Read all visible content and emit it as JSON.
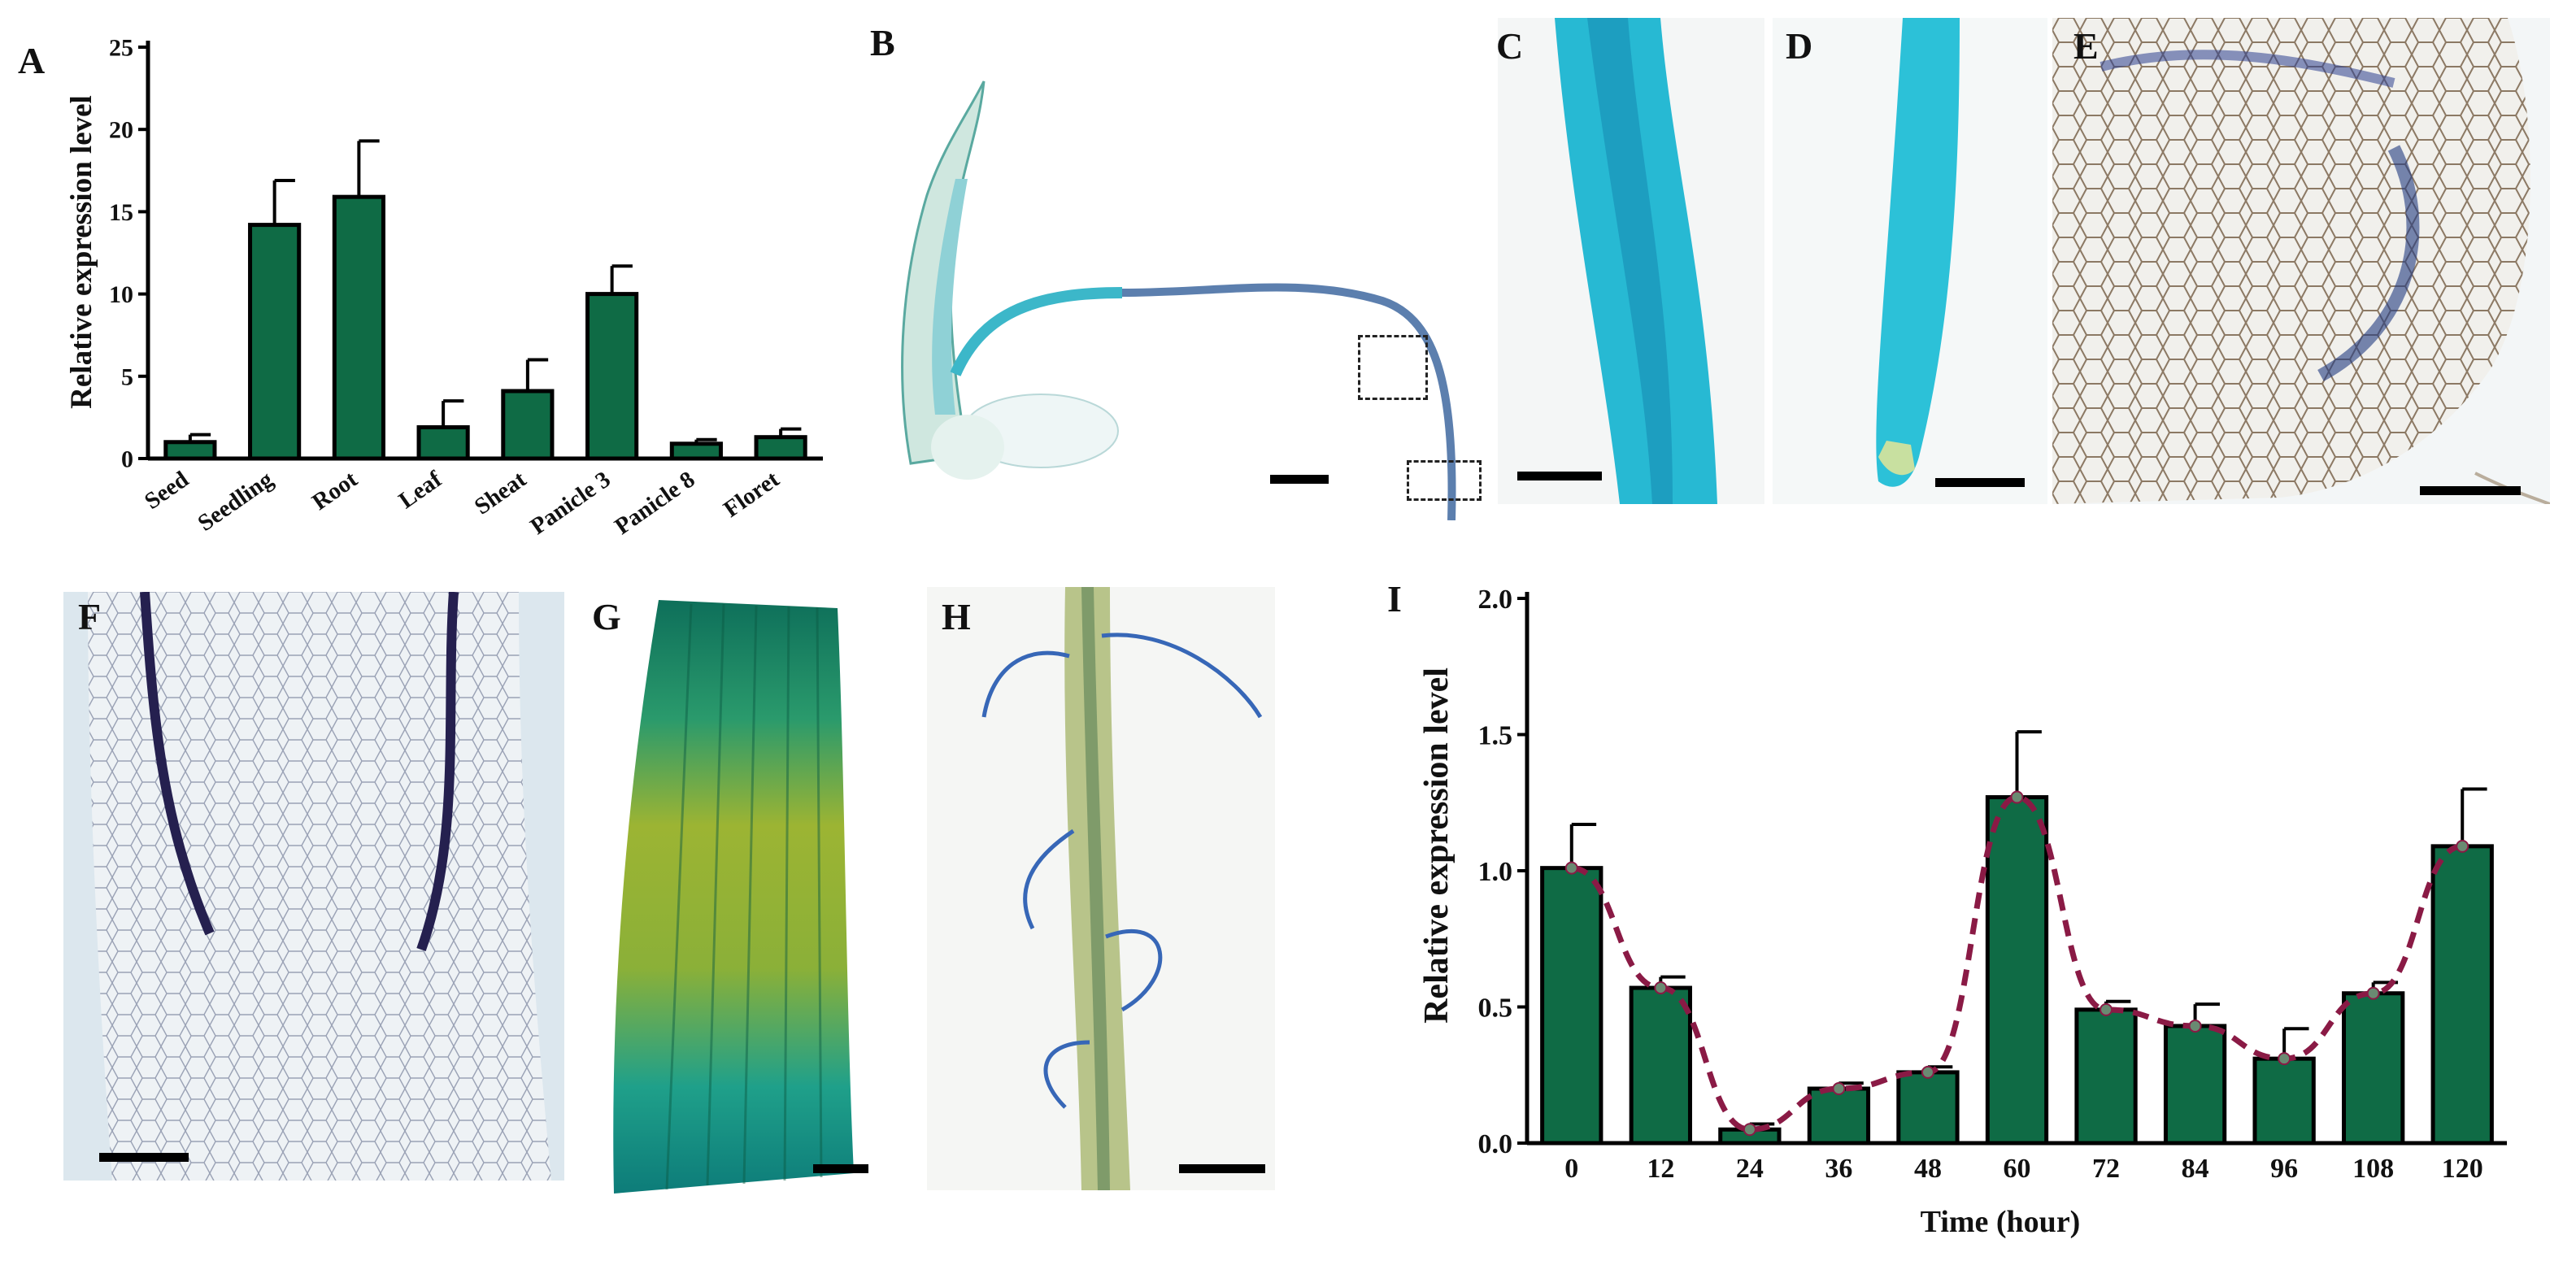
{
  "panels": {
    "A": "A",
    "B": "B",
    "C": "C",
    "D": "D",
    "E": "E",
    "F": "F",
    "G": "G",
    "H": "H",
    "I": "I"
  },
  "colors": {
    "bar_fill": "#0f6b45",
    "bar_stroke": "#000000",
    "trend_line": "#8a1a45"
  },
  "chart_data": [
    {
      "type": "bar",
      "panel": "A",
      "categories": [
        "Seed",
        "Seedling",
        "Root",
        "Leaf",
        "Sheat",
        "Panicle 3",
        "Panicle 8",
        "Floret"
      ],
      "values": [
        1.0,
        14.2,
        15.9,
        1.9,
        4.1,
        10.0,
        0.9,
        1.3
      ],
      "errors": [
        0.45,
        2.7,
        3.4,
        1.6,
        1.9,
        1.7,
        0.25,
        0.5
      ],
      "title": "",
      "xlabel": "",
      "ylabel": "Relative expression level",
      "ylim": [
        0,
        25
      ],
      "yticks": [
        "0",
        "5",
        "10",
        "15",
        "20",
        "25"
      ],
      "grid": false
    },
    {
      "type": "bar",
      "panel": "I",
      "categories": [
        "0",
        "12",
        "24",
        "36",
        "48",
        "60",
        "72",
        "84",
        "96",
        "108",
        "120"
      ],
      "values": [
        1.01,
        0.57,
        0.05,
        0.2,
        0.26,
        1.27,
        0.49,
        0.43,
        0.31,
        0.55,
        1.09
      ],
      "errors": [
        0.16,
        0.04,
        0.02,
        0.02,
        0.02,
        0.24,
        0.03,
        0.08,
        0.11,
        0.04,
        0.21
      ],
      "trend_line": true,
      "title": "",
      "xlabel": "Time (hour)",
      "ylabel": "Relative expression level",
      "ylim": [
        0,
        2.0
      ],
      "yticks": [
        "0.0",
        "0.5",
        "1.0",
        "1.5",
        "2.0"
      ],
      "grid": false
    }
  ]
}
